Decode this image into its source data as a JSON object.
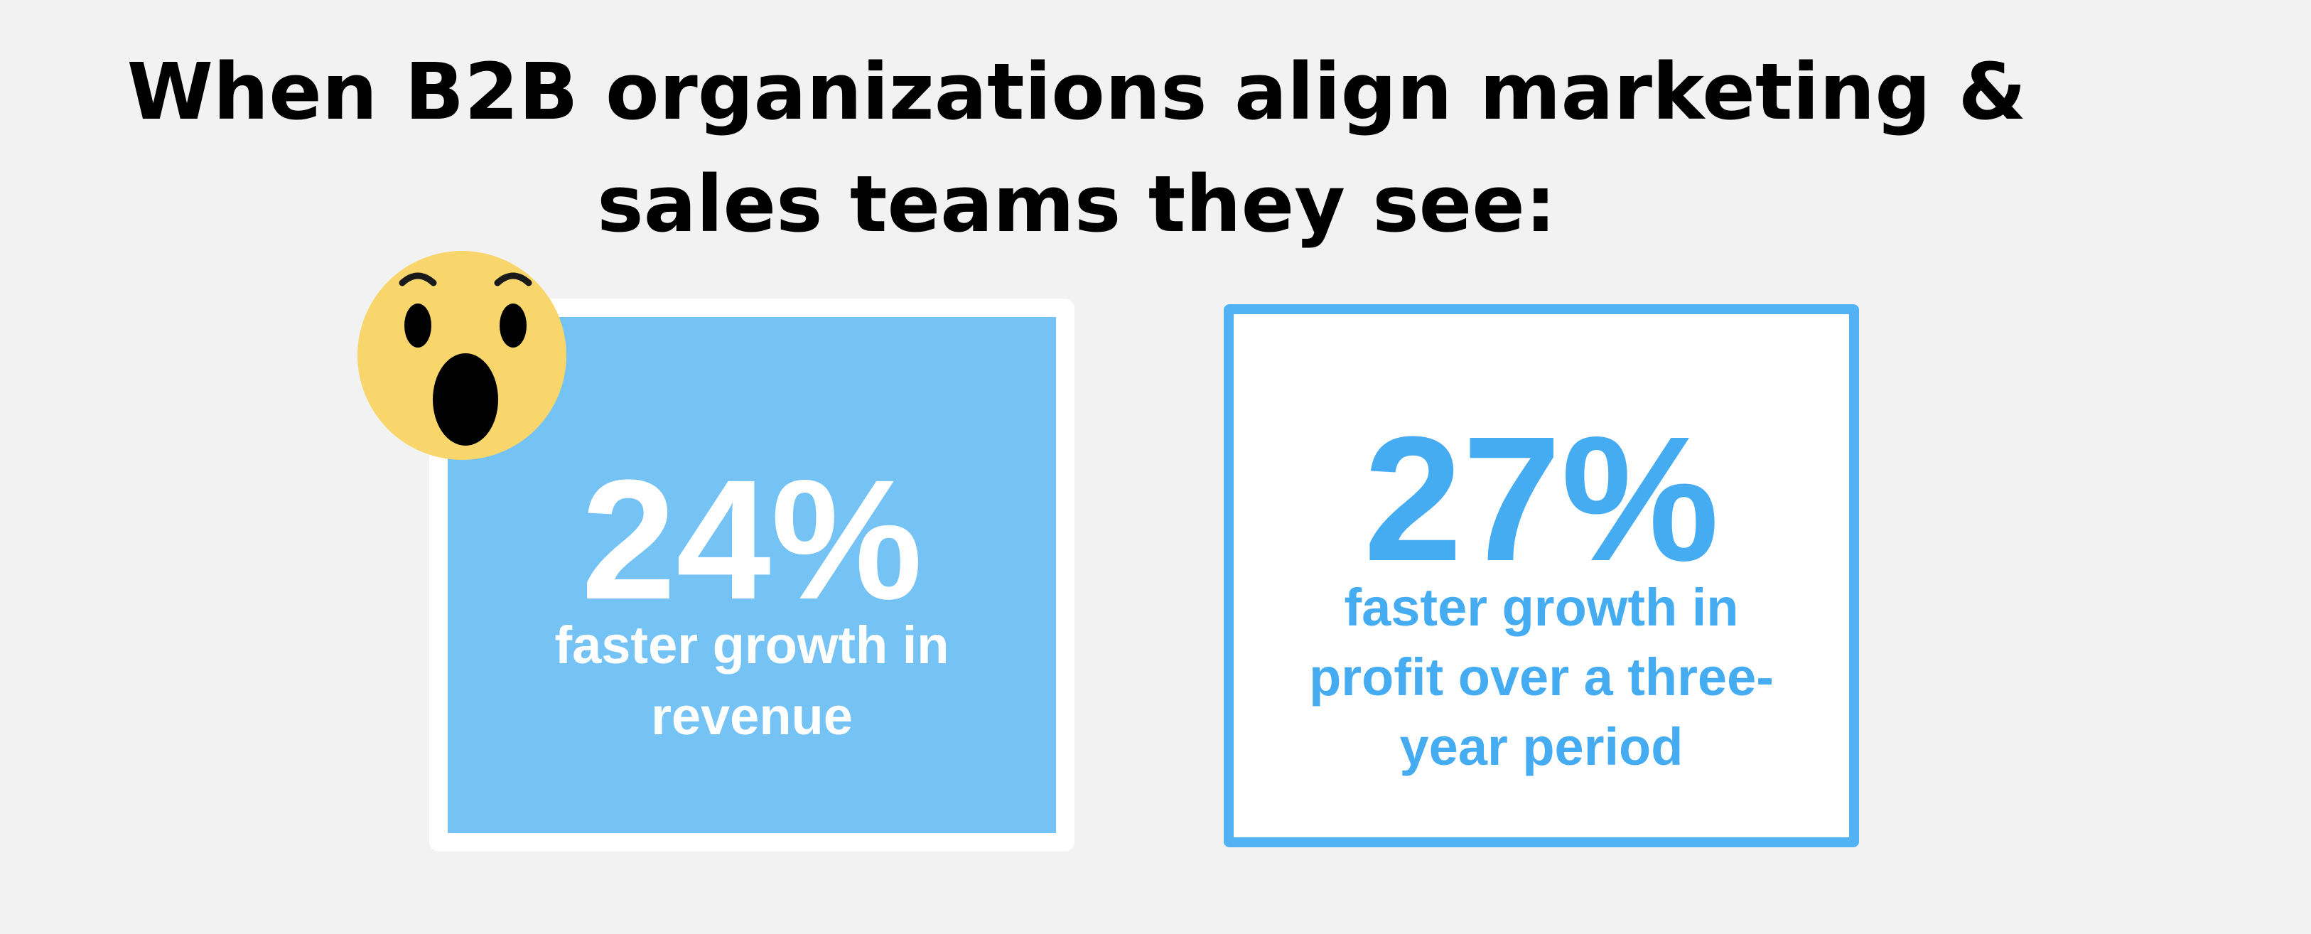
{
  "headline": {
    "line1": "When B2B organizations align marketing &",
    "line2": "sales teams they see:"
  },
  "stats": [
    {
      "value": "24%",
      "label_line1": "faster growth in",
      "label_line2": "revenue"
    },
    {
      "value": "27%",
      "label_line1": "faster growth in",
      "label_line2": "profit over a three-",
      "label_line3": "year period"
    }
  ],
  "emoji": {
    "icon": "surprised-face-icon"
  },
  "colors": {
    "background": "#f2f2f2",
    "card_blue": "#75c3f5",
    "accent_blue": "#46acf2",
    "emoji_yellow": "#f8d66b",
    "text_dark": "#000000",
    "white": "#ffffff"
  }
}
